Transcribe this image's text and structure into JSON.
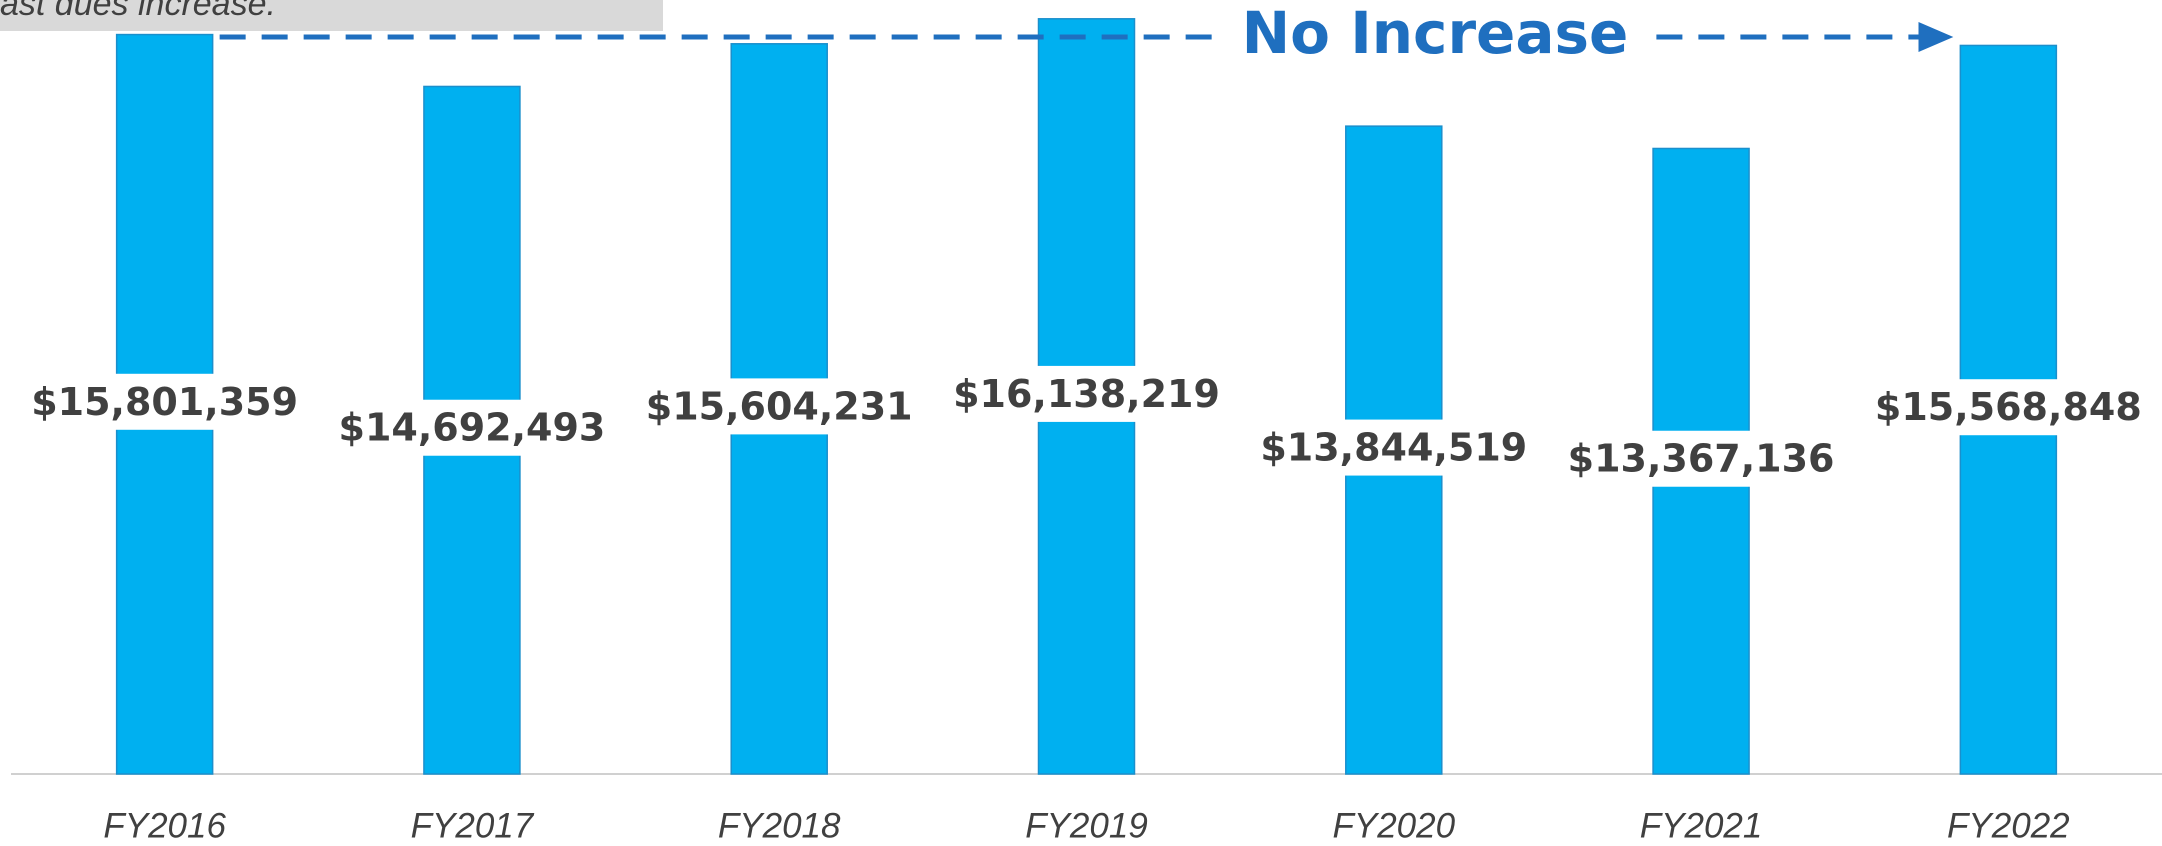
{
  "chart_data": {
    "type": "bar",
    "note": "ast dues increase.",
    "annotation": "No Increase",
    "categories": [
      "FY2016",
      "FY2017",
      "FY2018",
      "FY2019",
      "FY2020",
      "FY2021",
      "FY2022"
    ],
    "values": [
      15801359,
      14692493,
      15604231,
      16138219,
      13844519,
      13367136,
      15568848
    ],
    "value_labels": [
      "$15,801,359",
      "$14,692,493",
      "$15,604,231",
      "$16,138,219",
      "$13,844,519",
      "$13,367,136",
      "$15,568,848"
    ],
    "color": "#00b0f0",
    "ylim": [
      0,
      16540000
    ]
  }
}
